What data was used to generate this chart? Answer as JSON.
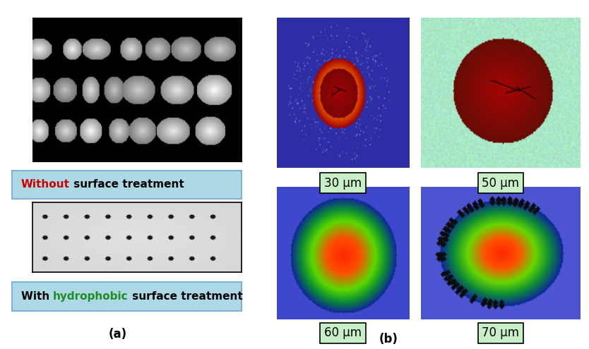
{
  "panel_a_label": "(a)",
  "panel_b_label": "(b)",
  "label1": "Without surface treatment",
  "label1_colored_word": "Without",
  "label1_color": "#cc0000",
  "label2": "With hydrophobic surface treatment",
  "label2_colored_word": "hydrophobic",
  "label2_color": "#228B22",
  "label_bg_color": "#add8e6",
  "dot_labels": [
    "30 μm",
    "50 μm",
    "60 μm",
    "70 μm"
  ],
  "dot_label_box_color": "#c8f0c8",
  "img1_bg": 0.0,
  "img2_bg": 0.85,
  "blue_bg": [
    0.18,
    0.18,
    0.65
  ],
  "cyan_bg": [
    0.65,
    0.9,
    0.78
  ]
}
